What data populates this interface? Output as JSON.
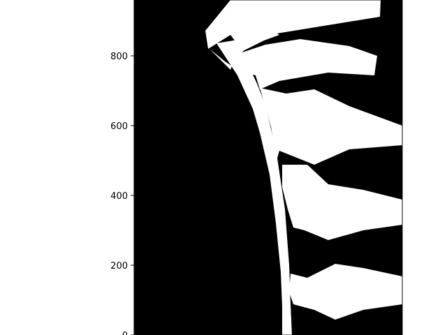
{
  "chart_data": {
    "type": "heatmap",
    "title": "",
    "xlabel": "",
    "ylabel": "",
    "colormap": [
      "#000000",
      "#ffffff"
    ],
    "ylim": [
      0,
      960
    ],
    "y_ticks": [
      {
        "value": 0,
        "label": "0"
      },
      {
        "value": 200,
        "label": "200"
      },
      {
        "value": 400,
        "label": "400"
      },
      {
        "value": 600,
        "label": "600"
      },
      {
        "value": 800,
        "label": "800"
      }
    ],
    "x_ticks": [],
    "description_of_values": "binary mask"
  }
}
